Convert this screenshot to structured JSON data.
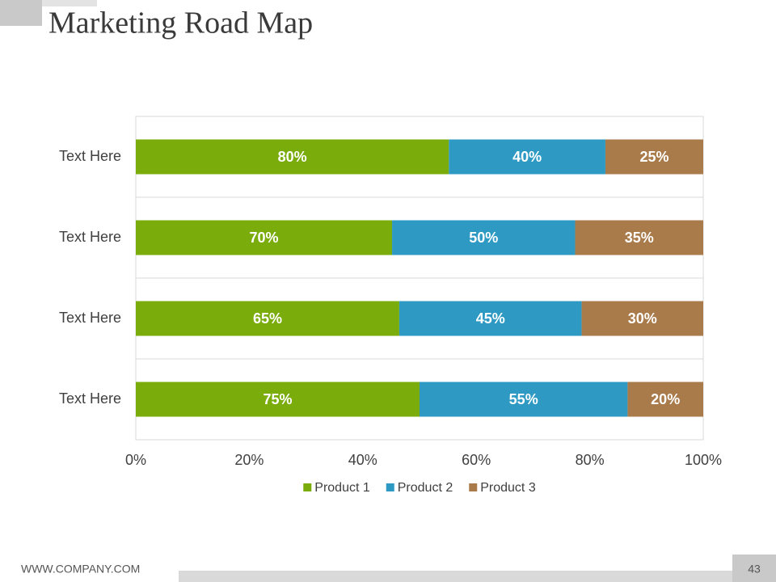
{
  "title": "Marketing Road Map",
  "footer": "WWW.COMPANY.COM",
  "page_number": "43",
  "chart_data": {
    "type": "bar",
    "orientation": "horizontal",
    "stacked": "percent",
    "categories": [
      "Text Here",
      "Text Here",
      "Text Here",
      "Text Here"
    ],
    "series": [
      {
        "name": "Product 1",
        "color": "#7aac0c",
        "values": [
          80,
          70,
          65,
          75
        ],
        "value_labels": [
          "80%",
          "70%",
          "65%",
          "75%"
        ]
      },
      {
        "name": "Product 2",
        "color": "#2e9ac4",
        "values": [
          40,
          50,
          45,
          55
        ],
        "value_labels": [
          "40%",
          "50%",
          "45%",
          "55%"
        ]
      },
      {
        "name": "Product 3",
        "color": "#a97a4a",
        "values": [
          25,
          35,
          30,
          20
        ],
        "value_labels": [
          "25%",
          "35%",
          "30%",
          "20%"
        ]
      }
    ],
    "xlim": [
      0,
      100
    ],
    "xticks": [
      {
        "value": 0,
        "label": "0%"
      },
      {
        "value": 20,
        "label": "20%"
      },
      {
        "value": 40,
        "label": "40%"
      },
      {
        "value": 60,
        "label": "60%"
      },
      {
        "value": 80,
        "label": "80%"
      },
      {
        "value": 100,
        "label": "100%"
      }
    ],
    "legend": "bottom"
  }
}
